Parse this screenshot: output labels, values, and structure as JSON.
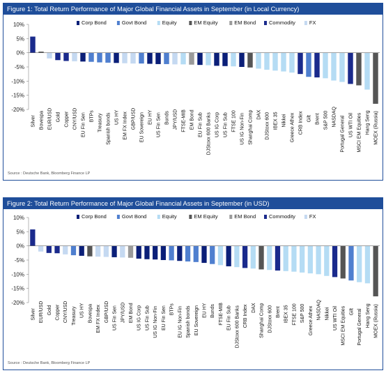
{
  "colors": {
    "Corp Bond": "#0b1f78",
    "Govt Bond": "#4f7fcf",
    "Equity": "#b5dcf4",
    "EM Equity": "#555555",
    "EM Bond": "#9a9a9a",
    "Commodity": "#1a2a8c",
    "FX": "#c5d9f1",
    "title_bar": "#1f4e9a"
  },
  "chart_data": [
    {
      "type": "bar",
      "title": "Figure 1: Total Return Performance of Major Global Financial Assets in September (in Local Currency)",
      "source": "Source : Deutsche Bank, Bloomberg Finance LP",
      "ylim": [
        -20,
        10
      ],
      "yticks": [
        10,
        5,
        0,
        -5,
        -10,
        -15,
        -20
      ],
      "ytick_labels": [
        "10%",
        "5%",
        "0%",
        "-5%",
        "-10%",
        "-15%",
        "-20%"
      ],
      "legend": [
        "Corp Bond",
        "Govt Bond",
        "Equity",
        "EM Equity",
        "EM Bond",
        "Commodity",
        "FX"
      ],
      "categories": [
        "Silver",
        "Bovespa",
        "EUR/USD",
        "Gold",
        "Copper",
        "CNY/USD",
        "EU Fin Sen",
        "BTPs",
        "Treasury",
        "Spanish bonds",
        "US HY",
        "EM FX Index",
        "GBP/USD",
        "EU Sovereign",
        "EU HY",
        "US Fin Sen",
        "Bunds",
        "JPY/USD",
        "FTSE-MIB",
        "EM Bond",
        "EU Fin Sub",
        "DJStoxx 600 Banks",
        "US IG Corp",
        "US Fin Sub",
        "FTSE 100",
        "US IG Non-Fin",
        "Shanghai Comp",
        "DAX",
        "DJStoxx 600",
        "IBEX 35",
        "Nikkei",
        "Greece Athex",
        "CRB Index",
        "Gilt",
        "Brent",
        "S&P 500",
        "NASDAQ",
        "Portugal General",
        "US WTI Oil",
        "MSCI EM Equities",
        "Hang Seng",
        "MOEX (Russia)"
      ],
      "classes": [
        "Commodity",
        "EM Equity",
        "FX",
        "Commodity",
        "Commodity",
        "FX",
        "Corp Bond",
        "Govt Bond",
        "Govt Bond",
        "Govt Bond",
        "Corp Bond",
        "FX",
        "FX",
        "Govt Bond",
        "Corp Bond",
        "Corp Bond",
        "Govt Bond",
        "FX",
        "Equity",
        "EM Bond",
        "Corp Bond",
        "Equity",
        "Corp Bond",
        "Corp Bond",
        "Equity",
        "Corp Bond",
        "EM Equity",
        "Equity",
        "Equity",
        "Equity",
        "Equity",
        "Equity",
        "Commodity",
        "Govt Bond",
        "Commodity",
        "Equity",
        "Equity",
        "Equity",
        "Commodity",
        "EM Equity",
        "Equity",
        "EM Equity"
      ],
      "values": [
        5.7,
        0.4,
        -2.0,
        -2.6,
        -2.9,
        -3.0,
        -3.1,
        -3.2,
        -3.4,
        -3.5,
        -3.6,
        -3.7,
        -3.8,
        -3.8,
        -3.9,
        -4.0,
        -4.0,
        -4.1,
        -4.1,
        -4.2,
        -4.3,
        -4.4,
        -4.6,
        -4.7,
        -4.8,
        -5.0,
        -5.2,
        -5.6,
        -6.0,
        -6.3,
        -6.6,
        -7.0,
        -7.5,
        -8.5,
        -8.7,
        -9.0,
        -9.8,
        -10.3,
        -11.0,
        -11.5,
        -13.0,
        -18.0
      ]
    },
    {
      "type": "bar",
      "title": "Figure 2: Total Return Performance of Major Global Financial Assets in September (in USD)",
      "source": "Source : Deutsche Bank, Bloomberg Finance LP",
      "ylim": [
        -20,
        10
      ],
      "yticks": [
        10,
        5,
        0,
        -5,
        -10,
        -15,
        -20
      ],
      "ytick_labels": [
        "10%",
        "5%",
        "0%",
        "-5%",
        "-10%",
        "-15%",
        "-20%"
      ],
      "legend": [
        "Corp Bond",
        "Govt Bond",
        "Equity",
        "EM Equity",
        "EM Bond",
        "Commodity",
        "FX"
      ],
      "categories": [
        "Silver",
        "EUR/USD",
        "Gold",
        "Copper",
        "CNY/USD",
        "Treasury",
        "US HY",
        "Bovespa",
        "EM FX Index",
        "GBP/USD",
        "US Fin Sen",
        "JPY/USD",
        "EM Bond",
        "US IG Corp",
        "US Fin Sub",
        "US IG Non-Fin",
        "EU Fin Sen",
        "BTPs",
        "EU IG Non-Fin",
        "Spanish bonds",
        "EU Sovereign",
        "EU HY",
        "Bunds",
        "FTSE-MIB",
        "EU Fin Sub",
        "DJStoxx 600 Banks",
        "CRB Index",
        "DAX",
        "Shanghai Comp",
        "DJStoxx 600",
        "Brent",
        "IBEX 35",
        "FTSE 100",
        "S&P 500",
        "Greece Athex",
        "NASDAQ",
        "Nikkei",
        "US WTI Oil",
        "MSCI EM Equities",
        "Gilt",
        "Portugal General",
        "Hang Seng",
        "MOEX (Russia)"
      ],
      "classes": [
        "Commodity",
        "FX",
        "Commodity",
        "Commodity",
        "FX",
        "Govt Bond",
        "Corp Bond",
        "EM Equity",
        "FX",
        "FX",
        "Corp Bond",
        "FX",
        "EM Bond",
        "Corp Bond",
        "Corp Bond",
        "Corp Bond",
        "Corp Bond",
        "Govt Bond",
        "Corp Bond",
        "Govt Bond",
        "Govt Bond",
        "Corp Bond",
        "Govt Bond",
        "Equity",
        "Corp Bond",
        "Equity",
        "Commodity",
        "Equity",
        "EM Equity",
        "Equity",
        "Commodity",
        "Equity",
        "Equity",
        "Equity",
        "Equity",
        "Equity",
        "Equity",
        "Commodity",
        "EM Equity",
        "Govt Bond",
        "Equity",
        "Equity",
        "EM Equity"
      ],
      "values": [
        5.8,
        -2.0,
        -2.5,
        -2.6,
        -3.0,
        -3.3,
        -3.5,
        -3.7,
        -3.8,
        -3.9,
        -4.0,
        -4.1,
        -4.2,
        -4.5,
        -4.7,
        -4.8,
        -5.0,
        -5.1,
        -5.3,
        -5.5,
        -5.7,
        -6.0,
        -6.4,
        -6.8,
        -7.2,
        -7.5,
        -7.8,
        -8.0,
        -8.3,
        -8.5,
        -8.7,
        -8.9,
        -9.1,
        -9.4,
        -9.7,
        -10.0,
        -10.6,
        -11.0,
        -11.5,
        -12.2,
        -12.8,
        -13.2,
        -17.8
      ]
    }
  ]
}
